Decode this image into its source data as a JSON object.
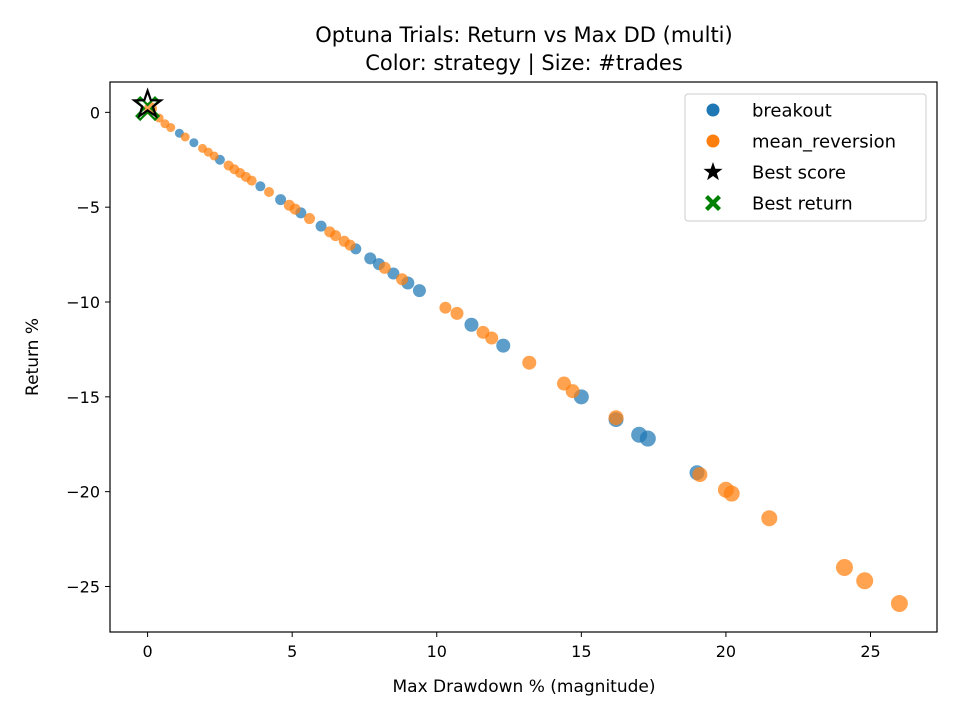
{
  "chart_data": {
    "type": "scatter",
    "title": [
      "Optuna Trials: Return vs Max DD (multi)",
      "Color: strategy | Size: #trades"
    ],
    "xlabel": "Max Drawdown % (magnitude)",
    "ylabel": "Return %",
    "xlim": [
      -1.3,
      27.3
    ],
    "ylim": [
      -27.4,
      1.6
    ],
    "xticks": [
      0,
      5,
      10,
      15,
      20,
      25
    ],
    "yticks": [
      0,
      -5,
      -10,
      -15,
      -20,
      -25
    ],
    "xtick_labels": [
      "0",
      "5",
      "10",
      "15",
      "20",
      "25"
    ],
    "ytick_labels": [
      "0",
      "−5",
      "−10",
      "−15",
      "−20",
      "−25"
    ],
    "grid": false,
    "legend_position": "top-right",
    "colors": {
      "breakout": "#1f77b4",
      "mean_reversion": "#ff7f0e",
      "best_score": "#000000",
      "best_return": "#008000"
    },
    "series": [
      {
        "name": "breakout",
        "points": [
          {
            "x": 1.1,
            "y": -1.1,
            "trades": 40
          },
          {
            "x": 1.6,
            "y": -1.6,
            "trades": 40
          },
          {
            "x": 2.5,
            "y": -2.5,
            "trades": 45
          },
          {
            "x": 3.9,
            "y": -3.9,
            "trades": 45
          },
          {
            "x": 4.6,
            "y": -4.6,
            "trades": 50
          },
          {
            "x": 5.3,
            "y": -5.3,
            "trades": 50
          },
          {
            "x": 6.0,
            "y": -6.0,
            "trades": 50
          },
          {
            "x": 7.2,
            "y": -7.2,
            "trades": 50
          },
          {
            "x": 7.7,
            "y": -7.7,
            "trades": 55
          },
          {
            "x": 8.0,
            "y": -8.0,
            "trades": 55
          },
          {
            "x": 8.5,
            "y": -8.5,
            "trades": 55
          },
          {
            "x": 9.0,
            "y": -9.0,
            "trades": 60
          },
          {
            "x": 9.4,
            "y": -9.4,
            "trades": 60
          },
          {
            "x": 11.2,
            "y": -11.2,
            "trades": 65
          },
          {
            "x": 12.3,
            "y": -12.3,
            "trades": 65
          },
          {
            "x": 15.0,
            "y": -15.0,
            "trades": 70
          },
          {
            "x": 16.2,
            "y": -16.2,
            "trades": 70
          },
          {
            "x": 17.0,
            "y": -17.0,
            "trades": 75
          },
          {
            "x": 17.3,
            "y": -17.2,
            "trades": 75
          },
          {
            "x": 19.0,
            "y": -19.0,
            "trades": 70
          }
        ]
      },
      {
        "name": "mean_reversion",
        "points": [
          {
            "x": 0.1,
            "y": 0.2,
            "trades": 60
          },
          {
            "x": 0.4,
            "y": -0.3,
            "trades": 40
          },
          {
            "x": 0.6,
            "y": -0.6,
            "trades": 40
          },
          {
            "x": 0.8,
            "y": -0.8,
            "trades": 40
          },
          {
            "x": 1.3,
            "y": -1.3,
            "trades": 40
          },
          {
            "x": 1.9,
            "y": -1.9,
            "trades": 40
          },
          {
            "x": 2.1,
            "y": -2.1,
            "trades": 40
          },
          {
            "x": 2.3,
            "y": -2.3,
            "trades": 40
          },
          {
            "x": 2.8,
            "y": -2.8,
            "trades": 45
          },
          {
            "x": 3.0,
            "y": -3.0,
            "trades": 45
          },
          {
            "x": 3.2,
            "y": -3.2,
            "trades": 45
          },
          {
            "x": 3.4,
            "y": -3.4,
            "trades": 45
          },
          {
            "x": 3.6,
            "y": -3.6,
            "trades": 45
          },
          {
            "x": 4.2,
            "y": -4.2,
            "trades": 45
          },
          {
            "x": 4.9,
            "y": -4.9,
            "trades": 50
          },
          {
            "x": 5.1,
            "y": -5.1,
            "trades": 50
          },
          {
            "x": 5.6,
            "y": -5.6,
            "trades": 50
          },
          {
            "x": 6.3,
            "y": -6.3,
            "trades": 50
          },
          {
            "x": 6.5,
            "y": -6.5,
            "trades": 50
          },
          {
            "x": 6.8,
            "y": -6.8,
            "trades": 50
          },
          {
            "x": 7.0,
            "y": -7.0,
            "trades": 50
          },
          {
            "x": 8.2,
            "y": -8.2,
            "trades": 55
          },
          {
            "x": 8.8,
            "y": -8.8,
            "trades": 55
          },
          {
            "x": 10.3,
            "y": -10.3,
            "trades": 55
          },
          {
            "x": 10.7,
            "y": -10.6,
            "trades": 60
          },
          {
            "x": 11.6,
            "y": -11.6,
            "trades": 60
          },
          {
            "x": 11.9,
            "y": -11.9,
            "trades": 60
          },
          {
            "x": 13.2,
            "y": -13.2,
            "trades": 65
          },
          {
            "x": 14.4,
            "y": -14.3,
            "trades": 65
          },
          {
            "x": 14.7,
            "y": -14.7,
            "trades": 65
          },
          {
            "x": 16.2,
            "y": -16.1,
            "trades": 70
          },
          {
            "x": 19.1,
            "y": -19.1,
            "trades": 70
          },
          {
            "x": 20.0,
            "y": -19.9,
            "trades": 75
          },
          {
            "x": 20.2,
            "y": -20.1,
            "trades": 75
          },
          {
            "x": 21.5,
            "y": -21.4,
            "trades": 75
          },
          {
            "x": 24.1,
            "y": -24.0,
            "trades": 80
          },
          {
            "x": 24.8,
            "y": -24.7,
            "trades": 80
          },
          {
            "x": 26.0,
            "y": -25.9,
            "trades": 80
          }
        ]
      }
    ],
    "best_score": {
      "label": "Best score",
      "x": 0.0,
      "y": 0.4
    },
    "best_return": {
      "label": "Best return",
      "x": 0.0,
      "y": 0.2
    },
    "legend": [
      {
        "label": "breakout",
        "marker": "circle",
        "color": "#1f77b4"
      },
      {
        "label": "mean_reversion",
        "marker": "circle",
        "color": "#ff7f0e"
      },
      {
        "label": "Best score",
        "marker": "star",
        "color": "#000000"
      },
      {
        "label": "Best return",
        "marker": "x-filled",
        "color": "#008000"
      }
    ]
  }
}
